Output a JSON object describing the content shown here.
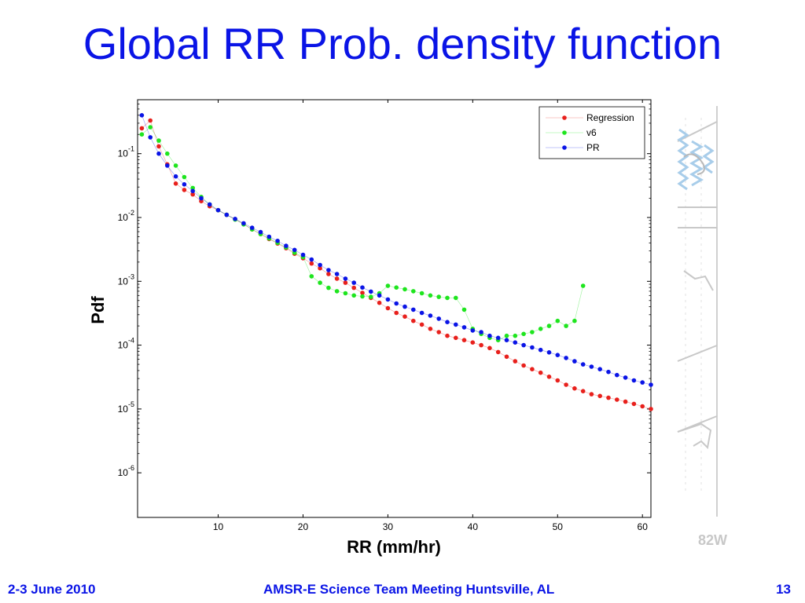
{
  "slide": {
    "title": "Global RR Prob. density function",
    "footer_left": "2-3 June 2010",
    "footer_center": "AMSR-E Science Team Meeting  Huntsville, AL",
    "page_number": "13",
    "map_label": "82W"
  },
  "chart_data": {
    "type": "scatter",
    "xlabel": "RR (mm/hr)",
    "ylabel": "Pdf",
    "xlim": [
      0.5,
      61
    ],
    "ylim": [
      2e-07,
      0.7
    ],
    "yscale": "log",
    "xticks": [
      10,
      20,
      30,
      40,
      50,
      60
    ],
    "yticks": [
      {
        "value": 0.1,
        "base": "10",
        "exp": "-1"
      },
      {
        "value": 0.01,
        "base": "10",
        "exp": "-2"
      },
      {
        "value": 0.001,
        "base": "10",
        "exp": "-3"
      },
      {
        "value": 0.0001,
        "base": "10",
        "exp": "-4"
      },
      {
        "value": 1e-05,
        "base": "10",
        "exp": "-5"
      },
      {
        "value": 1e-06,
        "base": "10",
        "exp": "-6"
      }
    ],
    "grid": false,
    "legend": "top-right",
    "series": [
      {
        "name": "Regression",
        "color": "#e8201c",
        "x": [
          1,
          2,
          3,
          4,
          5,
          6,
          7,
          8,
          9,
          10,
          11,
          12,
          13,
          14,
          15,
          16,
          17,
          18,
          19,
          20,
          21,
          22,
          23,
          24,
          25,
          26,
          27,
          28,
          29,
          30,
          31,
          32,
          33,
          34,
          35,
          36,
          37,
          38,
          39,
          40,
          41,
          42,
          43,
          44,
          45,
          46,
          47,
          48,
          49,
          50,
          51,
          52,
          53,
          54,
          55,
          56,
          57,
          58,
          59,
          60,
          61
        ],
        "y": [
          0.25,
          0.33,
          0.13,
          0.068,
          0.034,
          0.027,
          0.023,
          0.018,
          0.015,
          0.013,
          0.011,
          0.0094,
          0.0079,
          0.0065,
          0.0055,
          0.0046,
          0.0039,
          0.0033,
          0.0027,
          0.0023,
          0.0019,
          0.0016,
          0.0013,
          0.0011,
          0.00095,
          0.00079,
          0.00066,
          0.00055,
          0.00046,
          0.00038,
          0.00032,
          0.00028,
          0.00024,
          0.00021,
          0.00018,
          0.00016,
          0.00014,
          0.00013,
          0.00012,
          0.00011,
          0.0001,
          9e-05,
          7.8e-05,
          6.6e-05,
          5.6e-05,
          4.8e-05,
          4.2e-05,
          3.7e-05,
          3.2e-05,
          2.8e-05,
          2.4e-05,
          2.1e-05,
          1.9e-05,
          1.7e-05,
          1.6e-05,
          1.5e-05,
          1.4e-05,
          1.3e-05,
          1.2e-05,
          1.1e-05,
          1e-05
        ]
      },
      {
        "name": "v6",
        "color": "#1ee51e",
        "x": [
          1,
          2,
          3,
          4,
          5,
          6,
          7,
          8,
          9,
          10,
          11,
          12,
          13,
          14,
          15,
          16,
          17,
          18,
          19,
          20,
          21,
          22,
          23,
          24,
          25,
          26,
          27,
          28,
          29,
          30,
          31,
          32,
          33,
          34,
          35,
          36,
          37,
          38,
          39,
          40,
          41,
          42,
          43,
          44,
          45,
          46,
          47,
          48,
          49,
          50,
          51,
          52,
          53
        ],
        "y": [
          0.2,
          0.26,
          0.16,
          0.1,
          0.065,
          0.043,
          0.029,
          0.021,
          0.016,
          0.013,
          0.011,
          0.0093,
          0.0078,
          0.0065,
          0.0055,
          0.0047,
          0.004,
          0.0034,
          0.0028,
          0.0024,
          0.0012,
          0.00095,
          0.00079,
          0.0007,
          0.00065,
          0.0006,
          0.00058,
          0.00057,
          0.00065,
          0.00085,
          0.0008,
          0.00075,
          0.0007,
          0.00065,
          0.0006,
          0.00057,
          0.00055,
          0.00055,
          0.00036,
          0.00018,
          0.00015,
          0.00013,
          0.00012,
          0.00014,
          0.00014,
          0.00015,
          0.00016,
          0.00018,
          0.0002,
          0.00024,
          0.0002,
          0.00024,
          0.00085
        ]
      },
      {
        "name": "PR",
        "color": "#0a14e6",
        "x": [
          1,
          2,
          3,
          4,
          5,
          6,
          7,
          8,
          9,
          10,
          11,
          12,
          13,
          14,
          15,
          16,
          17,
          18,
          19,
          20,
          21,
          22,
          23,
          24,
          25,
          26,
          27,
          28,
          29,
          30,
          31,
          32,
          33,
          34,
          35,
          36,
          37,
          38,
          39,
          40,
          41,
          42,
          43,
          44,
          45,
          46,
          47,
          48,
          49,
          50,
          51,
          52,
          53,
          54,
          55,
          56,
          57,
          58,
          59,
          60,
          61
        ],
        "y": [
          0.4,
          0.18,
          0.1,
          0.065,
          0.044,
          0.033,
          0.026,
          0.02,
          0.016,
          0.013,
          0.011,
          0.0095,
          0.0081,
          0.0069,
          0.0059,
          0.005,
          0.0043,
          0.0036,
          0.0031,
          0.0026,
          0.0022,
          0.0018,
          0.0015,
          0.0013,
          0.0011,
          0.00095,
          0.0008,
          0.00069,
          0.0006,
          0.00052,
          0.00045,
          0.0004,
          0.00036,
          0.00032,
          0.00029,
          0.00026,
          0.00023,
          0.00021,
          0.00019,
          0.00017,
          0.00016,
          0.00014,
          0.00013,
          0.00012,
          0.00011,
          0.0001,
          9.2e-05,
          8.4e-05,
          7.7e-05,
          7e-05,
          6.3e-05,
          5.6e-05,
          5e-05,
          4.6e-05,
          4.2e-05,
          3.8e-05,
          3.4e-05,
          3.1e-05,
          2.8e-05,
          2.6e-05,
          2.4e-05
        ]
      }
    ]
  }
}
